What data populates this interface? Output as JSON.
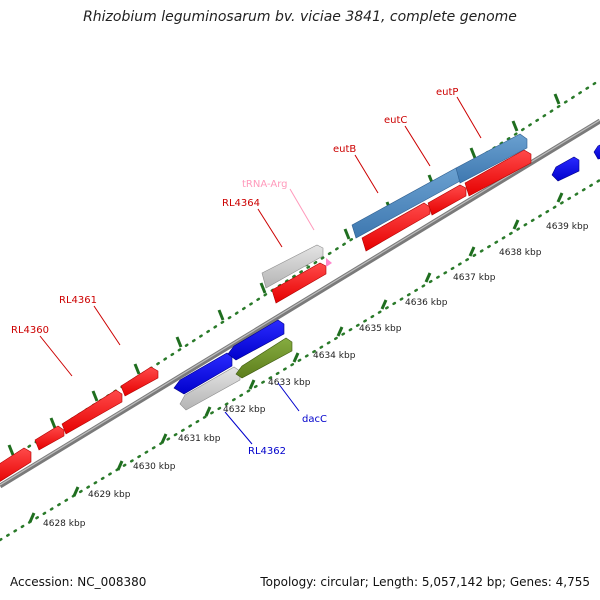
{
  "title": "Rhizobium leguminosarum bv. viciae 3841, complete genome",
  "footer": {
    "accession": "Accession: NC_008380",
    "topology": "Topology: circular; Length: 5,057,142 bp; Genes: 4,755"
  },
  "colors": {
    "backbone": "#888888",
    "ruler_dots": "#2a7a2a",
    "red_gene": "#ff0000",
    "blue_gene": "#0000ee",
    "steelblue_gene": "#4a86c0",
    "grey_gene": "#c8c8c8",
    "olive_gene": "#6b8e23",
    "trna": "#ff88cc",
    "red_label": "#cc0000",
    "blue_label": "#0000cc",
    "pink_label": "#ff99bb"
  },
  "ruler": {
    "ticks": [
      "4628 kbp",
      "4629 kbp",
      "4630 kbp",
      "4631 kbp",
      "4632 kbp",
      "4633 kbp",
      "4634 kbp",
      "4635 kbp",
      "4636 kbp",
      "4637 kbp",
      "4638 kbp",
      "4639 kbp"
    ]
  },
  "gene_labels": {
    "RL4360": "RL4360",
    "RL4361": "RL4361",
    "RL4364": "RL4364",
    "tRNA_Arg": "tRNA-Arg",
    "eutB": "eutB",
    "eutC": "eutC",
    "eutP": "eutP",
    "RL4362": "RL4362",
    "dacC": "dacC"
  }
}
